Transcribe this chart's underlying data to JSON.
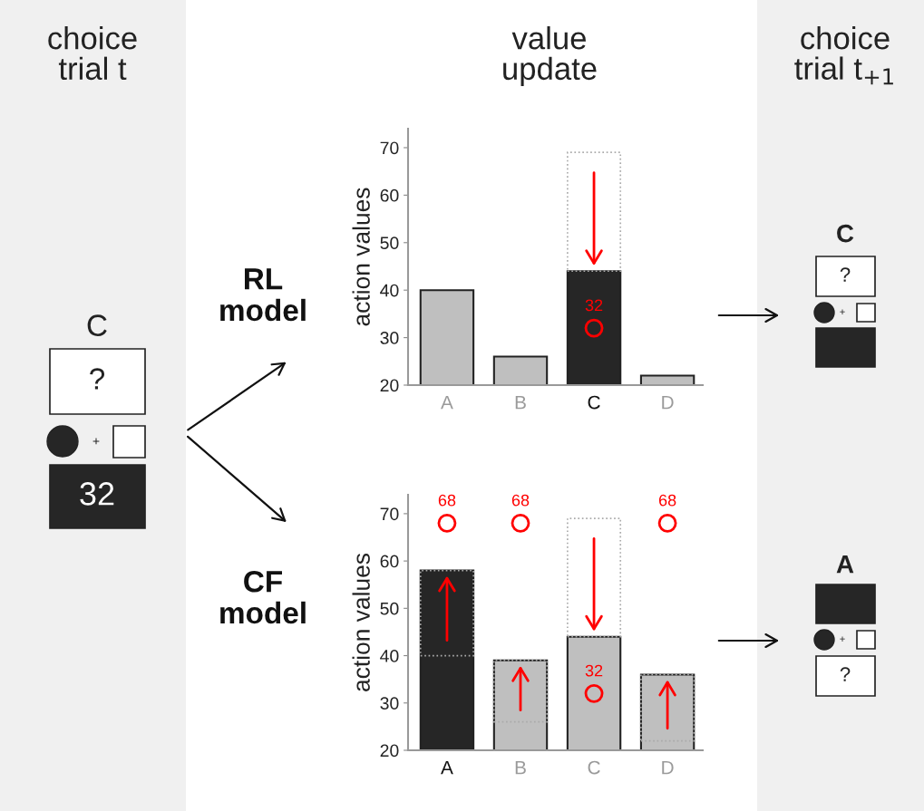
{
  "chart_data": [
    {
      "type": "other",
      "title": "choice trial t",
      "annotations": [
        "C",
        "?",
        "+",
        "32"
      ]
    },
    {
      "type": "bar",
      "title": "value update",
      "annotations": [
        "RL model"
      ],
      "ylabel": "action values",
      "categories": [
        "A",
        "B",
        "C",
        "D"
      ],
      "ylim": [
        20,
        74
      ],
      "yticks": [
        20,
        30,
        40,
        50,
        60,
        70
      ],
      "grid": false,
      "series": [
        {
          "type": "bar",
          "colors": [
            "#bfbfbf",
            "#bfbfbf",
            "#262626",
            "#bfbfbf"
          ],
          "values": [
            40,
            26,
            44,
            22
          ]
        },
        {
          "type": "bar",
          "color": "#aaaaaa",
          "line_style": "dotted",
          "base": [
            null,
            null,
            44,
            null
          ],
          "values": [
            null,
            null,
            25,
            null
          ]
        },
        {
          "type": "scatter",
          "color": "#ff0000",
          "marker": "circle",
          "values": [
            null,
            null,
            32,
            null
          ],
          "value_labels": [
            null,
            null,
            "32",
            null
          ]
        }
      ]
    },
    {
      "type": "bar",
      "annotations": [
        "CF model"
      ],
      "ylabel": "action values",
      "categories": [
        "A",
        "B",
        "C",
        "D"
      ],
      "ylim": [
        20,
        74
      ],
      "yticks": [
        20,
        30,
        40,
        50,
        60,
        70
      ],
      "grid": false,
      "series": [
        {
          "type": "bar",
          "colors": [
            "#262626",
            "#bfbfbf",
            "#bfbfbf",
            "#bfbfbf"
          ],
          "values": [
            58,
            39,
            44,
            36
          ]
        },
        {
          "type": "bar",
          "color": "#aaaaaa",
          "line_style": "dotted",
          "base": [
            40,
            26,
            44,
            22
          ],
          "values": [
            18,
            13,
            25,
            14
          ]
        },
        {
          "type": "scatter",
          "color": "#ff0000",
          "marker": "circle",
          "values": [
            68,
            68,
            32,
            68
          ],
          "value_labels": [
            "68",
            "68",
            "32",
            "68"
          ]
        }
      ]
    },
    {
      "type": "other",
      "title": "choice trial t$_{+1}$",
      "annotations": [
        "C",
        "?",
        "+",
        "A",
        "+",
        "?"
      ]
    }
  ]
}
